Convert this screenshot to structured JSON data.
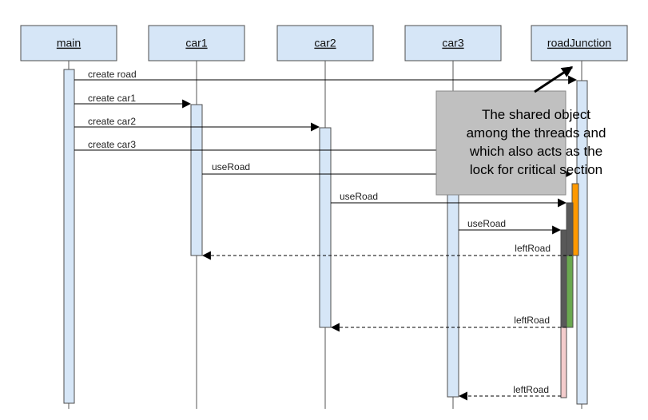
{
  "participants": [
    {
      "id": "main",
      "label": "main"
    },
    {
      "id": "car1",
      "label": "car1"
    },
    {
      "id": "car2",
      "label": "car2"
    },
    {
      "id": "car3",
      "label": "car3"
    },
    {
      "id": "roadJunction",
      "label": "roadJunction"
    }
  ],
  "messages": [
    {
      "label": "create road",
      "from": "main",
      "to": "roadJunction",
      "kind": "call"
    },
    {
      "label": "create car1",
      "from": "main",
      "to": "car1",
      "kind": "call"
    },
    {
      "label": "create car2",
      "from": "main",
      "to": "car2",
      "kind": "call"
    },
    {
      "label": "create car3",
      "from": "main",
      "to": "car3",
      "kind": "call"
    },
    {
      "label": "useRoad",
      "from": "car1",
      "to": "roadJunction",
      "kind": "call"
    },
    {
      "label": "useRoad",
      "from": "car2",
      "to": "roadJunction",
      "kind": "call"
    },
    {
      "label": "useRoad",
      "from": "car3",
      "to": "roadJunction",
      "kind": "call"
    },
    {
      "label": "leftRoad",
      "from": "roadJunction",
      "to": "car1",
      "kind": "return"
    },
    {
      "label": "leftRoad",
      "from": "roadJunction",
      "to": "car2",
      "kind": "return"
    },
    {
      "label": "leftRoad",
      "from": "roadJunction",
      "to": "car3",
      "kind": "return"
    }
  ],
  "note": {
    "lines": [
      "The shared object",
      "among the threads and",
      "which also acts as the",
      "lock for critical section"
    ]
  },
  "colors": {
    "box_fill": "#d6e6f7",
    "box_stroke": "#4d4d4d",
    "activation_fill": "#d6e6f7",
    "note_fill": "#c0c0c0",
    "car1_section": "#ff9900",
    "car2_section": "#6aa84f",
    "car3_section": "#f4cccc",
    "waiting_section": "#595959"
  }
}
